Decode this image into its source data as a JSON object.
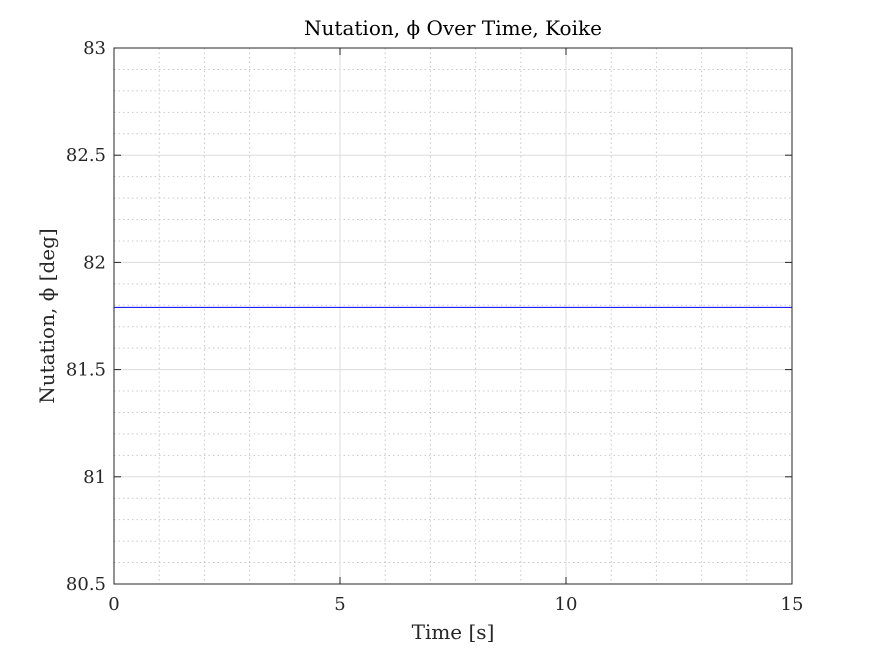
{
  "chart_data": {
    "type": "line",
    "title": "Nutation, ϕ Over Time, Koike",
    "xlabel": "Time [s]",
    "ylabel": "Nutation, ϕ [deg]",
    "xlim": [
      0,
      15
    ],
    "ylim": [
      80.5,
      83
    ],
    "xticks": [
      "0",
      "5",
      "10",
      "15"
    ],
    "yticks": [
      "80.5",
      "81",
      "81.5",
      "82",
      "82.5",
      "83"
    ],
    "grid": true,
    "minor_grid": true,
    "series": [
      {
        "color": "#0000ff",
        "x": [
          0,
          15
        ],
        "y": [
          81.79,
          81.79
        ]
      }
    ]
  }
}
